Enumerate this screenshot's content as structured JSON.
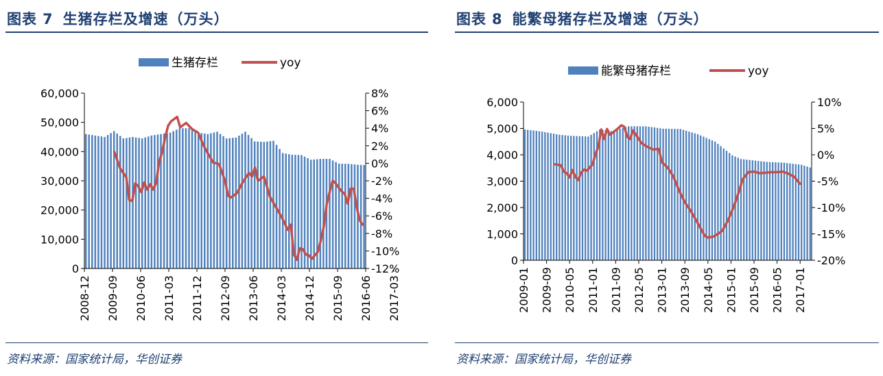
{
  "charts": [
    {
      "figure_label": "图表",
      "figure_number": "7",
      "title": "生猪存栏及增速（万头）",
      "source": "资料来源：国家统计局，华创证券"
    },
    {
      "figure_label": "图表",
      "figure_number": "8",
      "title": "能繁母猪存栏及增速（万头）",
      "source": "资料来源：国家统计局，华创证券"
    }
  ],
  "colors": {
    "bar": "#4f81bd",
    "line": "#c0504d",
    "title": "#1f3f73",
    "axis": "#000000"
  },
  "chart_data": [
    {
      "type": "bar+line",
      "title": "生猪存栏及增速（万头）",
      "legend": {
        "bar_label": "生猪存栏",
        "line_label": "yoy",
        "position": "top-center"
      },
      "x_tick_labels": [
        "2008-12",
        "2009-09",
        "2010-06",
        "2011-03",
        "2011-12",
        "2012-09",
        "2013-06",
        "2014-03",
        "2014-12",
        "2015-09",
        "2016-06",
        "2017-03"
      ],
      "y_left": {
        "min": 0,
        "max": 60000,
        "ticks": [
          "0",
          "10,000",
          "20,000",
          "30,000",
          "40,000",
          "50,000",
          "60,000"
        ]
      },
      "y_right": {
        "min": -12,
        "max": 8,
        "ticks": [
          "-12%",
          "-10%",
          "-8%",
          "-6%",
          "-4%",
          "-2%",
          "0%",
          "2%",
          "4%",
          "6%",
          "8%"
        ]
      },
      "bar_anchors": [
        [
          0,
          46000
        ],
        [
          3,
          45500
        ],
        [
          6,
          45000
        ],
        [
          9,
          47000
        ],
        [
          12,
          44500
        ],
        [
          15,
          45000
        ],
        [
          18,
          44500
        ],
        [
          21,
          45500
        ],
        [
          24,
          46000
        ],
        [
          27,
          46500
        ],
        [
          30,
          48000
        ],
        [
          33,
          48000
        ],
        [
          36,
          46500
        ],
        [
          39,
          46000
        ],
        [
          42,
          46800
        ],
        [
          45,
          44500
        ],
        [
          48,
          44800
        ],
        [
          51,
          46800
        ],
        [
          54,
          43500
        ],
        [
          57,
          43300
        ],
        [
          60,
          43700
        ],
        [
          63,
          39500
        ],
        [
          66,
          38900
        ],
        [
          69,
          38800
        ],
        [
          72,
          37200
        ],
        [
          75,
          37500
        ],
        [
          78,
          37500
        ],
        [
          81,
          35900
        ],
        [
          84,
          35800
        ],
        [
          87,
          35500
        ],
        [
          89,
          35400
        ]
      ],
      "bar_count": 90,
      "yoy": [
        [
          10,
          1.3
        ],
        [
          12,
          -0.6
        ],
        [
          14,
          -1.6
        ],
        [
          15,
          -4.2
        ],
        [
          16,
          -4.3
        ],
        [
          17,
          -2.3
        ],
        [
          18,
          -2.6
        ],
        [
          19,
          -3.3
        ],
        [
          20,
          -2.2
        ],
        [
          21,
          -3.0
        ],
        [
          22,
          -2.4
        ],
        [
          23,
          -3.0
        ],
        [
          24,
          -2.2
        ],
        [
          25,
          0.2
        ],
        [
          26,
          1.3
        ],
        [
          27,
          3.0
        ],
        [
          28,
          4.3
        ],
        [
          29,
          4.8
        ],
        [
          31,
          5.3
        ],
        [
          32,
          4.1
        ],
        [
          34,
          4.6
        ],
        [
          36,
          3.9
        ],
        [
          38,
          3.5
        ],
        [
          40,
          1.9
        ],
        [
          41,
          1.3
        ],
        [
          43,
          0.1
        ],
        [
          45,
          -0.1
        ],
        [
          47,
          -2.0
        ],
        [
          48,
          -3.7
        ],
        [
          49,
          -3.9
        ],
        [
          51,
          -3.4
        ],
        [
          53,
          -2.1
        ],
        [
          55,
          -1.1
        ],
        [
          56,
          -1.5
        ],
        [
          57,
          -0.5
        ],
        [
          58,
          -2.0
        ],
        [
          60,
          -1.5
        ],
        [
          62,
          -3.8
        ],
        [
          64,
          -5.0
        ],
        [
          66,
          -6.2
        ],
        [
          68,
          -7.6
        ],
        [
          69,
          -7.0
        ],
        [
          70,
          -10.4
        ],
        [
          71,
          -11.0
        ],
        [
          72,
          -9.7
        ],
        [
          73,
          -9.8
        ],
        [
          74,
          -10.4
        ],
        [
          75,
          -10.5
        ],
        [
          76,
          -10.9
        ],
        [
          78,
          -10.1
        ],
        [
          79,
          -8.8
        ],
        [
          80,
          -7.2
        ],
        [
          81,
          -4.6
        ],
        [
          82,
          -3.2
        ],
        [
          83,
          -2.0
        ],
        [
          84,
          -2.3
        ],
        [
          85,
          -2.8
        ],
        [
          86,
          -3.2
        ],
        [
          87,
          -3.5
        ],
        [
          88,
          -4.6
        ],
        [
          89,
          -2.9
        ],
        [
          90,
          -2.9
        ],
        [
          91,
          -5.0
        ],
        [
          92,
          -6.5
        ],
        [
          93,
          -7.0
        ]
      ]
    },
    {
      "type": "bar+line",
      "title": "能繁母猪存栏及增速（万头）",
      "legend": {
        "bar_label": "能繁母猪存栏",
        "line_label": "yoy",
        "position": "top-center"
      },
      "x_tick_labels": [
        "2009-01",
        "2009-09",
        "2010-05",
        "2011-01",
        "2011-09",
        "2012-05",
        "2013-01",
        "2013-09",
        "2014-05",
        "2015-01",
        "2015-09",
        "2016-05",
        "2017-01"
      ],
      "y_left": {
        "min": 0,
        "max": 6000,
        "ticks": [
          "0",
          "1,000",
          "2,000",
          "3,000",
          "4,000",
          "5,000",
          "6,000"
        ]
      },
      "y_right": {
        "min": -20,
        "max": 10,
        "ticks": [
          "-20%",
          "-15%",
          "-10%",
          "-5%",
          "0%",
          "5%",
          "10%"
        ]
      },
      "bar_anchors": [
        [
          0,
          4960
        ],
        [
          6,
          4880
        ],
        [
          12,
          4760
        ],
        [
          16,
          4720
        ],
        [
          22,
          4690
        ],
        [
          26,
          4960
        ],
        [
          30,
          4900
        ],
        [
          36,
          5080
        ],
        [
          42,
          5080
        ],
        [
          48,
          4990
        ],
        [
          54,
          4980
        ],
        [
          60,
          4780
        ],
        [
          66,
          4500
        ],
        [
          72,
          3980
        ],
        [
          75,
          3840
        ],
        [
          84,
          3730
        ],
        [
          90,
          3700
        ],
        [
          96,
          3620
        ],
        [
          99,
          3520
        ]
      ],
      "bar_count": 100,
      "yoy": [
        [
          11,
          -1.8
        ],
        [
          13,
          -2.0
        ],
        [
          14,
          -3.2
        ],
        [
          15,
          -3.5
        ],
        [
          16,
          -4.3
        ],
        [
          17,
          -2.9
        ],
        [
          18,
          -4.2
        ],
        [
          19,
          -4.8
        ],
        [
          20,
          -3.4
        ],
        [
          21,
          -2.8
        ],
        [
          22,
          -3.0
        ],
        [
          24,
          -1.8
        ],
        [
          25,
          0.2
        ],
        [
          26,
          1.6
        ],
        [
          27,
          4.8
        ],
        [
          28,
          3.0
        ],
        [
          29,
          4.9
        ],
        [
          30,
          3.8
        ],
        [
          31,
          4.2
        ],
        [
          33,
          5.1
        ],
        [
          34,
          5.6
        ],
        [
          35,
          5.3
        ],
        [
          36,
          3.4
        ],
        [
          37,
          3.0
        ],
        [
          38,
          4.6
        ],
        [
          39,
          3.8
        ],
        [
          41,
          2.2
        ],
        [
          43,
          1.5
        ],
        [
          45,
          1.0
        ],
        [
          47,
          1.1
        ],
        [
          48,
          -1.4
        ],
        [
          50,
          -2.4
        ],
        [
          52,
          -4.1
        ],
        [
          54,
          -6.8
        ],
        [
          56,
          -9.0
        ],
        [
          58,
          -10.6
        ],
        [
          60,
          -12.5
        ],
        [
          62,
          -14.5
        ],
        [
          63,
          -15.4
        ],
        [
          64,
          -15.7
        ],
        [
          66,
          -15.5
        ],
        [
          68,
          -14.8
        ],
        [
          69,
          -14.4
        ],
        [
          71,
          -12.4
        ],
        [
          73,
          -9.8
        ],
        [
          75,
          -6.6
        ],
        [
          76,
          -4.7
        ],
        [
          78,
          -3.3
        ],
        [
          80,
          -3.2
        ],
        [
          82,
          -3.5
        ],
        [
          84,
          -3.4
        ],
        [
          86,
          -3.3
        ],
        [
          88,
          -3.3
        ],
        [
          90,
          -3.2
        ],
        [
          92,
          -3.6
        ],
        [
          94,
          -4.2
        ],
        [
          95,
          -4.9
        ],
        [
          96,
          -5.5
        ]
      ]
    }
  ]
}
